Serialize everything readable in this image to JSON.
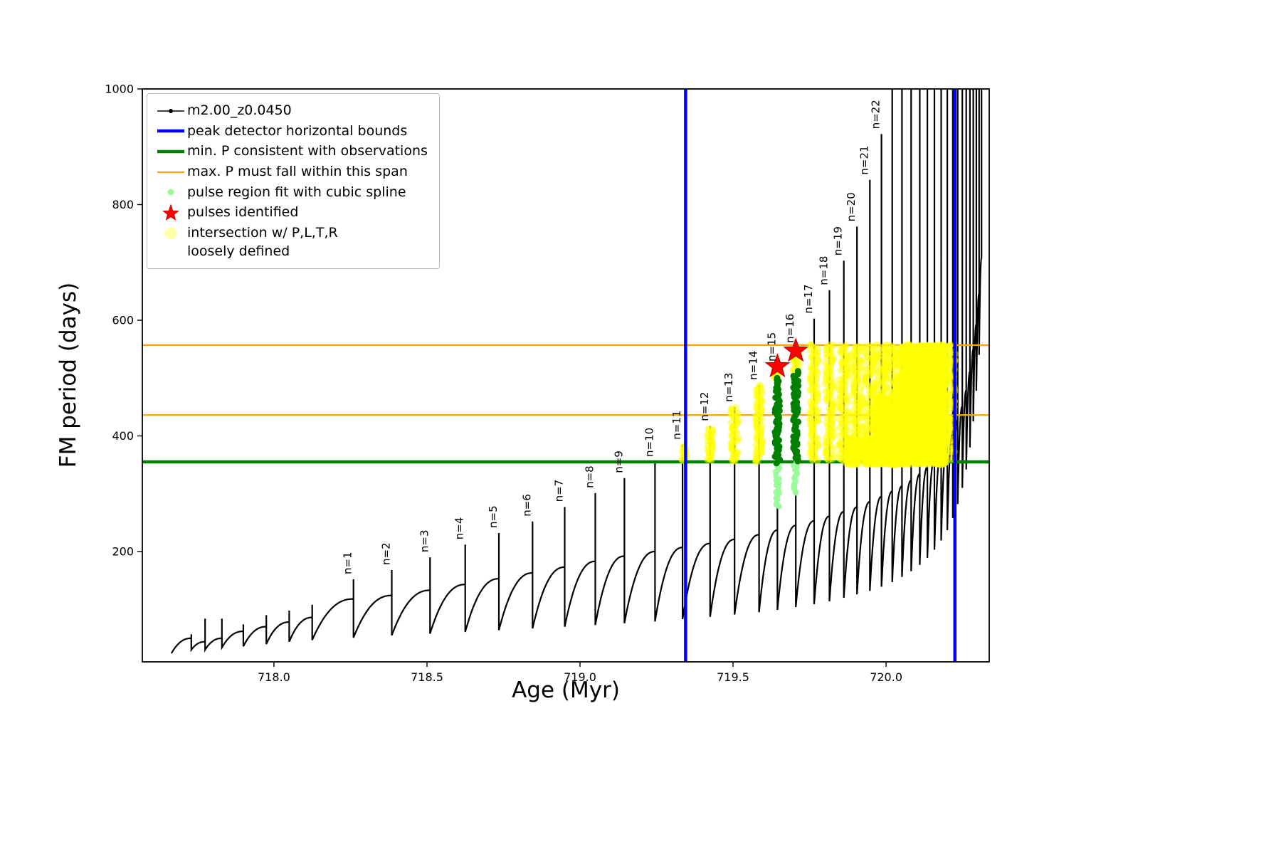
{
  "figure": {
    "xlabel": "Age (Myr)",
    "ylabel": "FM period (days)",
    "xticks": [
      718.0,
      718.5,
      719.0,
      719.5,
      720.0
    ],
    "xtick_labels": [
      "718.0",
      "718.5",
      "719.0",
      "719.5",
      "720.0"
    ],
    "yticks": [
      200,
      400,
      600,
      800,
      1000
    ],
    "ytick_labels": [
      "200",
      "400",
      "600",
      "800",
      "1000"
    ]
  },
  "legend": {
    "items": [
      {
        "label": "m2.00_z0.0450"
      },
      {
        "label": "peak detector horizontal bounds"
      },
      {
        "label": "min. P consistent with observations"
      },
      {
        "label": "max. P must fall within this span"
      },
      {
        "label": "pulse region fit with cubic spline"
      },
      {
        "label": "pulses identified"
      },
      {
        "label": "intersection w/ P,L,T,R",
        "label2": "loosely defined"
      }
    ]
  },
  "chart_data": {
    "type": "line",
    "title": "",
    "series_name": "m2.00_z0.0450",
    "xlabel": "Age (Myr)",
    "ylabel": "FM period (days)",
    "xlim": [
      717.57,
      720.337
    ],
    "ylim": [
      9.2,
      1000
    ],
    "grid": false,
    "legend_position": "upper left",
    "colors": {
      "track": "#000000",
      "peak_bounds": "#0000ff",
      "min_p": "#008000",
      "max_p_span": "#ffa500",
      "spline_fit": "#98fb98",
      "pulses": "#ff0000",
      "intersection": "#ffff00"
    },
    "peak_detector_bounds_x": [
      719.345,
      720.225
    ],
    "min_p_line_y": 355,
    "max_p_span_y": [
      436,
      557
    ],
    "pulses": [
      {
        "x": 719.645,
        "y": 520,
        "n": 15
      },
      {
        "x": 719.705,
        "y": 547,
        "n": 16
      }
    ],
    "pulse_regions": [
      [
        719.645,
        352,
        500
      ],
      [
        719.705,
        356,
        512
      ]
    ],
    "spline_fit_segments": [
      [
        719.645,
        278,
        352
      ],
      [
        719.705,
        300,
        356
      ]
    ],
    "teeth_format": [
      "age_start",
      "age_end",
      "period_min",
      "period_shoulder",
      "period_peak",
      "label"
    ],
    "teeth": [
      [
        717.665,
        717.73,
        24,
        50,
        57,
        ""
      ],
      [
        717.73,
        717.775,
        30,
        44,
        84,
        ""
      ],
      [
        717.775,
        717.83,
        30,
        50,
        84,
        ""
      ],
      [
        717.83,
        717.9,
        34,
        62,
        74,
        ""
      ],
      [
        717.9,
        717.975,
        36,
        70,
        90,
        ""
      ],
      [
        717.975,
        718.05,
        40,
        78,
        98,
        ""
      ],
      [
        718.05,
        718.125,
        44,
        86,
        108,
        ""
      ],
      [
        718.125,
        718.26,
        47,
        118,
        152,
        "n=1"
      ],
      [
        718.26,
        718.385,
        51,
        124,
        168,
        "n=2"
      ],
      [
        718.385,
        718.51,
        55,
        133,
        190,
        "n=3"
      ],
      [
        718.51,
        718.625,
        58,
        143,
        212,
        "n=4"
      ],
      [
        718.625,
        718.735,
        61,
        153,
        232,
        "n=5"
      ],
      [
        718.735,
        718.845,
        64,
        163,
        252,
        "n=6"
      ],
      [
        718.845,
        718.95,
        67,
        173,
        277,
        "n=7"
      ],
      [
        718.95,
        719.05,
        70,
        183,
        301,
        "n=8"
      ],
      [
        719.05,
        719.145,
        73,
        192,
        327,
        "n=9"
      ],
      [
        719.145,
        719.245,
        76,
        200,
        355,
        "n=10"
      ],
      [
        719.245,
        719.335,
        79,
        207,
        385,
        "n=11"
      ],
      [
        719.335,
        719.425,
        83,
        214,
        417,
        "n=12"
      ],
      [
        719.425,
        719.505,
        87,
        221,
        450,
        "n=13"
      ],
      [
        719.505,
        719.585,
        91,
        229,
        488,
        "n=14"
      ],
      [
        719.585,
        719.645,
        95,
        237,
        520,
        "n=15"
      ],
      [
        719.645,
        719.705,
        99,
        245,
        552,
        "n=16"
      ],
      [
        719.705,
        719.765,
        104,
        253,
        603,
        "n=17"
      ],
      [
        719.765,
        719.815,
        109,
        261,
        652,
        "n=18"
      ],
      [
        719.815,
        719.862,
        114,
        269,
        703,
        "n=19"
      ],
      [
        719.862,
        719.905,
        120,
        277,
        762,
        "n=20"
      ],
      [
        719.905,
        719.947,
        126,
        286,
        843,
        "n=21"
      ],
      [
        719.947,
        719.985,
        132,
        295,
        922,
        "n=22"
      ],
      [
        719.985,
        720.02,
        139,
        304,
        1020,
        ""
      ],
      [
        720.02,
        720.052,
        147,
        313,
        1020,
        ""
      ],
      [
        720.052,
        720.082,
        156,
        323,
        1020,
        ""
      ],
      [
        720.082,
        720.11,
        166,
        334,
        1020,
        ""
      ],
      [
        720.11,
        720.135,
        177,
        346,
        1020,
        ""
      ],
      [
        720.135,
        720.158,
        189,
        359,
        1020,
        ""
      ],
      [
        720.158,
        720.18,
        203,
        373,
        1020,
        ""
      ],
      [
        720.18,
        720.2,
        219,
        389,
        1020,
        ""
      ],
      [
        720.2,
        720.218,
        237,
        407,
        1020,
        ""
      ],
      [
        720.218,
        720.234,
        258,
        427,
        1020,
        ""
      ],
      [
        720.234,
        720.249,
        282,
        451,
        1020,
        ""
      ],
      [
        720.249,
        720.262,
        310,
        479,
        1020,
        ""
      ],
      [
        720.262,
        720.274,
        342,
        511,
        1020,
        ""
      ],
      [
        720.274,
        720.285,
        380,
        549,
        1020,
        ""
      ],
      [
        720.285,
        720.295,
        425,
        593,
        1020,
        ""
      ],
      [
        720.295,
        720.304,
        478,
        646,
        1020,
        ""
      ],
      [
        720.304,
        720.312,
        540,
        708,
        1020,
        ""
      ]
    ],
    "yellow_columns_format": [
      "age",
      "period_min",
      "period_max",
      "halfwidth_px"
    ],
    "yellow_columns": [
      [
        719.34,
        356,
        383,
        4
      ],
      [
        719.425,
        356,
        413,
        4
      ],
      [
        719.505,
        356,
        447,
        5
      ],
      [
        719.585,
        356,
        486,
        5
      ],
      [
        719.645,
        495,
        522,
        5
      ],
      [
        719.705,
        508,
        552,
        5
      ],
      [
        719.765,
        356,
        556,
        6
      ],
      [
        719.815,
        356,
        556,
        6
      ],
      [
        719.862,
        356,
        556,
        7
      ],
      [
        719.905,
        356,
        556,
        7
      ],
      [
        719.947,
        356,
        556,
        8
      ],
      [
        719.985,
        356,
        556,
        8
      ],
      [
        720.02,
        356,
        556,
        9
      ],
      [
        720.052,
        356,
        556,
        10
      ],
      [
        720.082,
        356,
        556,
        10
      ],
      [
        720.11,
        356,
        556,
        11
      ],
      [
        720.135,
        356,
        556,
        11
      ],
      [
        720.158,
        356,
        556,
        12
      ],
      [
        720.18,
        356,
        556,
        12
      ],
      [
        720.198,
        356,
        556,
        12
      ]
    ],
    "yellow_bands_format": [
      "age_start",
      "age_end",
      "period_min",
      "period_max",
      "n_points"
    ],
    "yellow_bands": [
      [
        719.87,
        720.06,
        350,
        396,
        420
      ],
      [
        719.96,
        720.055,
        350,
        470,
        380
      ],
      [
        720.05,
        720.195,
        350,
        556,
        1600
      ]
    ]
  }
}
